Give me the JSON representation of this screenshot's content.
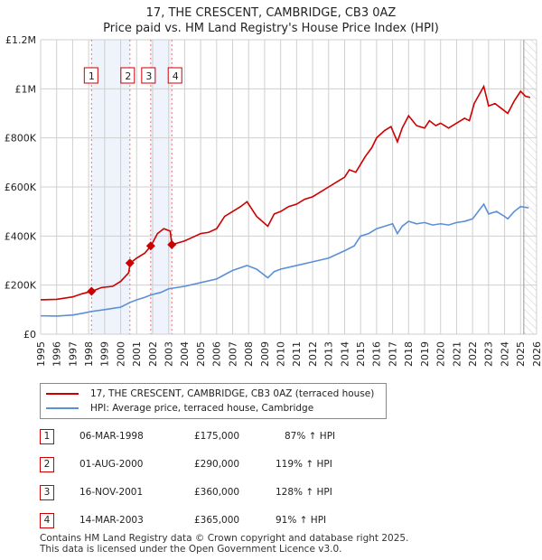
{
  "chart_data": {
    "type": "line",
    "title": "17, THE CRESCENT, CAMBRIDGE, CB3 0AZ",
    "subtitle": "Price paid vs. HM Land Registry's House Price Index (HPI)",
    "xlim": [
      1995,
      2026
    ],
    "ylim": [
      0,
      1200000
    ],
    "y_ticks": [
      {
        "v": 0,
        "label": "£0"
      },
      {
        "v": 200000,
        "label": "£200K"
      },
      {
        "v": 400000,
        "label": "£400K"
      },
      {
        "v": 600000,
        "label": "£600K"
      },
      {
        "v": 800000,
        "label": "£800K"
      },
      {
        "v": 1000000,
        "label": "£1M"
      },
      {
        "v": 1200000,
        "label": "£1.2M"
      }
    ],
    "x_ticks": [
      "1995",
      "1996",
      "1997",
      "1998",
      "1999",
      "2000",
      "2001",
      "2002",
      "2003",
      "2004",
      "2005",
      "2006",
      "2007",
      "2008",
      "2009",
      "2010",
      "2011",
      "2012",
      "2013",
      "2014",
      "2015",
      "2016",
      "2017",
      "2018",
      "2019",
      "2020",
      "2021",
      "2022",
      "2023",
      "2024",
      "2025",
      "2026"
    ],
    "grid": true,
    "series": [
      {
        "name": "17, THE CRESCENT, CAMBRIDGE, CB3 0AZ (terraced house)",
        "color": "#cc0000",
        "x": [
          1995,
          1996,
          1997,
          1997.6,
          1998.2,
          1998.8,
          1999.5,
          2000,
          2000.5,
          2000.6,
          2001,
          2001.5,
          2001.9,
          2002.3,
          2002.7,
          2003.1,
          2003.2,
          2004,
          2004.5,
          2005,
          2005.5,
          2006,
          2006.5,
          2007,
          2007.5,
          2007.9,
          2008.5,
          2009.2,
          2009.6,
          2010,
          2010.5,
          2011,
          2011.5,
          2012,
          2012.5,
          2013,
          2013.5,
          2014,
          2014.3,
          2014.7,
          2015.3,
          2015.7,
          2016,
          2016.5,
          2016.9,
          2017.3,
          2017.6,
          2018,
          2018.5,
          2019,
          2019.3,
          2019.7,
          2020,
          2020.5,
          2021,
          2021.5,
          2021.8,
          2022.1,
          2022.7,
          2023,
          2023.4,
          2023.8,
          2024.2,
          2024.6,
          2025,
          2025.3,
          2025.6
        ],
        "y": [
          140000,
          142000,
          152000,
          165000,
          175000,
          190000,
          195000,
          215000,
          250000,
          290000,
          310000,
          330000,
          360000,
          410000,
          430000,
          420000,
          365000,
          380000,
          395000,
          410000,
          415000,
          430000,
          480000,
          500000,
          520000,
          540000,
          480000,
          440000,
          490000,
          500000,
          520000,
          530000,
          550000,
          560000,
          580000,
          600000,
          620000,
          640000,
          670000,
          660000,
          725000,
          760000,
          800000,
          830000,
          846000,
          784000,
          840000,
          890000,
          850000,
          840000,
          870000,
          850000,
          860000,
          840000,
          860000,
          880000,
          870000,
          940000,
          1010000,
          930000,
          940000,
          920000,
          900000,
          950000,
          990000,
          970000,
          965000
        ]
      },
      {
        "name": "HPI: Average price, terraced house, Cambridge",
        "color": "#5b8fd6",
        "x": [
          1995,
          1996,
          1997,
          1997.6,
          1998.2,
          1999,
          2000,
          2000.6,
          2001,
          2001.5,
          2001.9,
          2002.5,
          2003,
          2004,
          2005,
          2006,
          2007,
          2007.9,
          2008.5,
          2009.2,
          2009.6,
          2010,
          2011,
          2012,
          2013,
          2014,
          2014.6,
          2015,
          2015.5,
          2016,
          2016.5,
          2017,
          2017.3,
          2017.6,
          2018,
          2018.5,
          2019,
          2019.5,
          2020,
          2020.5,
          2021,
          2021.5,
          2022,
          2022.7,
          2023,
          2023.5,
          2024,
          2024.2,
          2024.6,
          2025,
          2025.5
        ],
        "y": [
          75000,
          74000,
          78000,
          85000,
          93000,
          100000,
          110000,
          130000,
          140000,
          150000,
          160000,
          170000,
          185000,
          195000,
          210000,
          225000,
          260000,
          280000,
          265000,
          230000,
          255000,
          265000,
          280000,
          295000,
          310000,
          340000,
          360000,
          400000,
          410000,
          430000,
          440000,
          450000,
          410000,
          440000,
          460000,
          450000,
          455000,
          445000,
          450000,
          445000,
          455000,
          460000,
          470000,
          530000,
          490000,
          500000,
          480000,
          470000,
          500000,
          520000,
          515000
        ]
      }
    ],
    "sales": [
      {
        "n": "1",
        "x": 1998.18,
        "price": 175000,
        "date": "06-MAR-1998",
        "price_label": "£175,000",
        "hpi": "87% ↑ HPI"
      },
      {
        "n": "2",
        "x": 2000.58,
        "price": 290000,
        "date": "01-AUG-2000",
        "price_label": "£290,000",
        "hpi": "119% ↑ HPI"
      },
      {
        "n": "3",
        "x": 2001.88,
        "price": 360000,
        "date": "16-NOV-2001",
        "price_label": "£360,000",
        "hpi": "128% ↑ HPI"
      },
      {
        "n": "4",
        "x": 2003.2,
        "price": 365000,
        "date": "14-MAR-2003",
        "price_label": "£365,000",
        "hpi": "91% ↑ HPI"
      }
    ],
    "forecast_start": 2025.2,
    "legend_position": "below"
  },
  "footer": {
    "line1": "Contains HM Land Registry data © Crown copyright and database right 2025.",
    "line2": "This data is licensed under the Open Government Licence v3.0."
  }
}
